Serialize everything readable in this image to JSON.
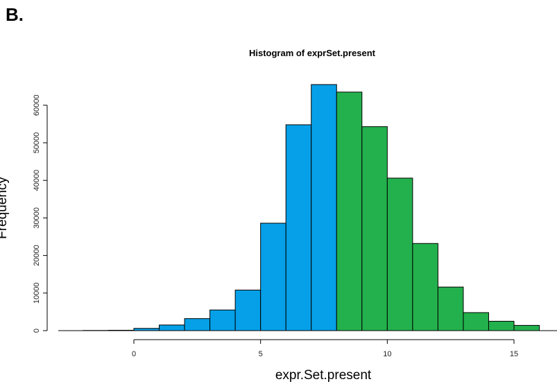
{
  "panel_label": "B.",
  "chart_data": {
    "type": "bar",
    "title": "Histogram of exprSet.present",
    "xlabel": "expr.Set.present",
    "ylabel": "Frequency",
    "xlim": [
      -3,
      16.5
    ],
    "ylim": [
      0,
      66000
    ],
    "x_ticks": [
      0,
      5,
      10,
      15
    ],
    "y_ticks": [
      0,
      10000,
      20000,
      30000,
      40000,
      50000,
      60000
    ],
    "bin_width": 1,
    "bins": [
      {
        "start": -2,
        "end": -1,
        "count": 50,
        "group": "low"
      },
      {
        "start": -1,
        "end": 0,
        "count": 100,
        "group": "low"
      },
      {
        "start": 0,
        "end": 1,
        "count": 600,
        "group": "low"
      },
      {
        "start": 1,
        "end": 2,
        "count": 1500,
        "group": "low"
      },
      {
        "start": 2,
        "end": 3,
        "count": 3200,
        "group": "low"
      },
      {
        "start": 3,
        "end": 4,
        "count": 5500,
        "group": "low"
      },
      {
        "start": 4,
        "end": 5,
        "count": 10800,
        "group": "low"
      },
      {
        "start": 5,
        "end": 6,
        "count": 28600,
        "group": "low"
      },
      {
        "start": 6,
        "end": 7,
        "count": 54800,
        "group": "low"
      },
      {
        "start": 7,
        "end": 8,
        "count": 65500,
        "group": "low"
      },
      {
        "start": 8,
        "end": 9,
        "count": 63500,
        "group": "high"
      },
      {
        "start": 9,
        "end": 10,
        "count": 54300,
        "group": "high"
      },
      {
        "start": 10,
        "end": 11,
        "count": 40600,
        "group": "high"
      },
      {
        "start": 11,
        "end": 12,
        "count": 23200,
        "group": "high"
      },
      {
        "start": 12,
        "end": 13,
        "count": 11600,
        "group": "high"
      },
      {
        "start": 13,
        "end": 14,
        "count": 4800,
        "group": "high"
      },
      {
        "start": 14,
        "end": 15,
        "count": 2500,
        "group": "high"
      },
      {
        "start": 15,
        "end": 16,
        "count": 1400,
        "group": "high"
      }
    ],
    "colors": {
      "low": "#05a0e8",
      "high": "#23b14d",
      "border": "#000000"
    },
    "grid": false,
    "legend": "none"
  }
}
